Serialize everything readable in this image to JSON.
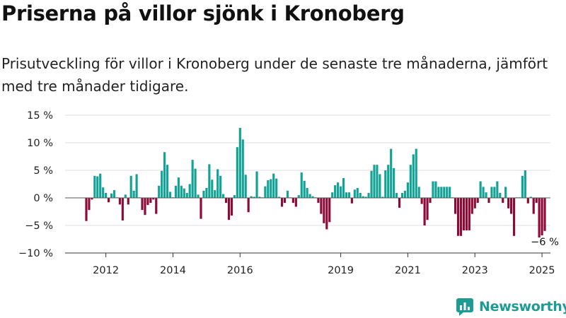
{
  "chart_data": {
    "type": "bar",
    "title": "Priserna på villor sjönk i Kronoberg",
    "subtitle": "Prisutveckling för villor i Kronoberg under de senaste tre månaderna, jämfört med tre månader tidigare.",
    "unit": "%",
    "x_start": "2011-06",
    "frequency": "monthly",
    "x_ticks": [
      "2012",
      "2014",
      "2016",
      "2019",
      "2021",
      "2023",
      "2025"
    ],
    "y_ticks": [
      "15 %",
      "10 %",
      "5 %",
      "0 %",
      "−5 %",
      "−10 %"
    ],
    "ylim": [
      -10,
      15
    ],
    "grid": "horizontal",
    "colors": {
      "positive": "#12a296",
      "negative": "#8b0a38"
    },
    "values": [
      -4.2,
      -2.2,
      -0.3,
      4.0,
      3.9,
      4.4,
      1.9,
      0.9,
      -0.8,
      0.8,
      1.4,
      0.1,
      -1.2,
      -4.1,
      0.6,
      -1.2,
      4.0,
      1.3,
      4.3,
      0.1,
      -2.2,
      -3.1,
      -1.3,
      -0.9,
      -0.3,
      -2.9,
      2.2,
      4.9,
      8.3,
      6.0,
      1.1,
      0.1,
      2.2,
      3.7,
      2.2,
      1.7,
      0.9,
      2.5,
      6.9,
      5.3,
      0.6,
      -3.8,
      1.3,
      1.8,
      6.1,
      3.3,
      1.4,
      5.2,
      4.0,
      0.7,
      -0.9,
      -4.0,
      -3.2,
      0.5,
      9.2,
      12.7,
      10.6,
      4.2,
      -2.6,
      0.3,
      0.2,
      4.8,
      0.2,
      0.1,
      2.1,
      3.2,
      3.4,
      4.4,
      3.5,
      0.2,
      -1.6,
      -0.9,
      1.3,
      0.1,
      -0.9,
      -1.6,
      0.5,
      4.6,
      3.1,
      1.8,
      0.7,
      0.3,
      0.1,
      -0.9,
      -2.9,
      -4.6,
      -5.7,
      -4.4,
      1.0,
      2.3,
      2.8,
      2.1,
      3.6,
      1.0,
      1.0,
      -1.0,
      1.5,
      1.8,
      0.9,
      0.3,
      0.2,
      0.9,
      4.9,
      6.0,
      6.0,
      4.3,
      0.2,
      5.0,
      6.0,
      8.9,
      5.4,
      0.9,
      -1.8,
      0.9,
      1.3,
      2.8,
      6.0,
      7.9,
      8.9,
      2.0,
      -1.1,
      -5.0,
      -4.0,
      -0.9,
      3.0,
      3.0,
      2.0,
      2.0,
      2.0,
      2.0,
      2.0,
      0.1,
      -2.9,
      -6.9,
      -6.9,
      -5.9,
      -5.9,
      -5.9,
      -2.9,
      -1.9,
      -0.9,
      3.0,
      2.0,
      1.0,
      -0.9,
      2.0,
      2.0,
      3.0,
      0.9,
      -0.9,
      2.0,
      -1.9,
      -2.9,
      -6.9,
      0.1,
      0.1,
      4.0,
      5.0,
      -1.0,
      0.2,
      -2.9,
      -0.9,
      -7.2,
      -6.8,
      -6.0
    ],
    "last_label": "−6 %"
  },
  "brand": {
    "name": "Newsworthy",
    "icon": "bar-chart-speech-bubble-icon"
  }
}
